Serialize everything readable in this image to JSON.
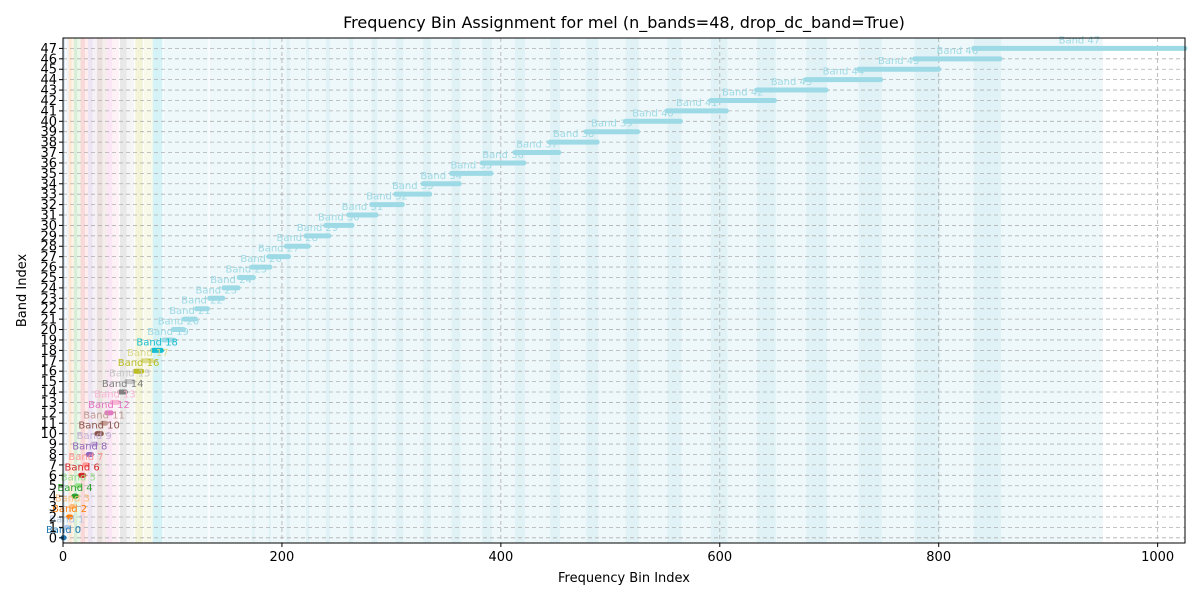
{
  "chart_data": {
    "type": "scatter",
    "title": "Frequency Bin Assignment for mel (n_bands=48, drop_dc_band=True)",
    "xlabel": "Frequency Bin Index",
    "ylabel": "Band Index",
    "xlim": [
      0,
      1025
    ],
    "ylim": [
      -0.5,
      48
    ],
    "xticks": [
      0,
      200,
      400,
      600,
      800,
      1000
    ],
    "yticks": [
      0,
      1,
      2,
      3,
      4,
      5,
      6,
      7,
      8,
      9,
      10,
      11,
      12,
      13,
      14,
      15,
      16,
      17,
      18,
      19,
      20,
      21,
      22,
      23,
      24,
      25,
      26,
      27,
      28,
      29,
      30,
      31,
      32,
      33,
      34,
      35,
      36,
      37,
      38,
      39,
      40,
      41,
      42,
      43,
      44,
      45,
      46,
      47
    ],
    "grid": true,
    "series": [
      {
        "label": "Band 0",
        "bins": [
          0,
          1
        ],
        "color": "#1f77b4"
      },
      {
        "label": "Band 1",
        "bins": [
          3,
          4
        ],
        "color": "#aec7e8"
      },
      {
        "label": "Band 2",
        "bins": [
          5,
          7
        ],
        "color": "#ff7f0e"
      },
      {
        "label": "Band 3",
        "bins": [
          8,
          9
        ],
        "color": "#ffbb78"
      },
      {
        "label": "Band 4",
        "bins": [
          10,
          12
        ],
        "color": "#2ca02c"
      },
      {
        "label": "Band 5",
        "bins": [
          13,
          15
        ],
        "color": "#98df8a"
      },
      {
        "label": "Band 6",
        "bins": [
          16,
          19
        ],
        "color": "#d62728"
      },
      {
        "label": "Band 7",
        "bins": [
          20,
          22
        ],
        "color": "#ff9896"
      },
      {
        "label": "Band 8",
        "bins": [
          23,
          26
        ],
        "color": "#9467bd"
      },
      {
        "label": "Band 9",
        "bins": [
          27,
          30
        ],
        "color": "#c5b0d5"
      },
      {
        "label": "Band 10",
        "bins": [
          31,
          35
        ],
        "color": "#8c564b"
      },
      {
        "label": "Band 11",
        "bins": [
          36,
          39
        ],
        "color": "#c49c94"
      },
      {
        "label": "Band 12",
        "bins": [
          40,
          44
        ],
        "color": "#e377c2"
      },
      {
        "label": "Band 13",
        "bins": [
          45,
          50
        ],
        "color": "#f7b6d2"
      },
      {
        "label": "Band 14",
        "bins": [
          52,
          57
        ],
        "color": "#7f7f7f"
      },
      {
        "label": "Band 15",
        "bins": [
          58,
          64
        ],
        "color": "#c7c7c7"
      },
      {
        "label": "Band 16",
        "bins": [
          66,
          72
        ],
        "color": "#bcbd22"
      },
      {
        "label": "Band 17",
        "bins": [
          74,
          81
        ],
        "color": "#dbdb8d"
      },
      {
        "label": "Band 18",
        "bins": [
          82,
          90
        ],
        "color": "#17becf"
      },
      {
        "label": "Band 19",
        "bins": [
          92,
          100
        ],
        "color": "#9edae5"
      },
      {
        "label": "Band 20",
        "bins": [
          101,
          110
        ],
        "color": "#9edae5"
      },
      {
        "label": "Band 21",
        "bins": [
          111,
          121
        ],
        "color": "#9edae5"
      },
      {
        "label": "Band 22",
        "bins": [
          122,
          132
        ],
        "color": "#9edae5"
      },
      {
        "label": "Band 23",
        "bins": [
          134,
          146
        ],
        "color": "#9edae5"
      },
      {
        "label": "Band 24",
        "bins": [
          147,
          160
        ],
        "color": "#9edae5"
      },
      {
        "label": "Band 25",
        "bins": [
          161,
          174
        ],
        "color": "#9edae5"
      },
      {
        "label": "Band 26",
        "bins": [
          173,
          189
        ],
        "color": "#9edae5"
      },
      {
        "label": "Band 27",
        "bins": [
          188,
          206
        ],
        "color": "#9edae5"
      },
      {
        "label": "Band 28",
        "bins": [
          204,
          224
        ],
        "color": "#9edae5"
      },
      {
        "label": "Band 29",
        "bins": [
          222,
          243
        ],
        "color": "#9edae5"
      },
      {
        "label": "Band 30",
        "bins": [
          240,
          264
        ],
        "color": "#9edae5"
      },
      {
        "label": "Band 31",
        "bins": [
          261,
          286
        ],
        "color": "#9edae5"
      },
      {
        "label": "Band 32",
        "bins": [
          282,
          310
        ],
        "color": "#9edae5"
      },
      {
        "label": "Band 33",
        "bins": [
          304,
          335
        ],
        "color": "#9edae5"
      },
      {
        "label": "Band 34",
        "bins": [
          329,
          362
        ],
        "color": "#9edae5"
      },
      {
        "label": "Band 35",
        "bins": [
          355,
          391
        ],
        "color": "#9edae5"
      },
      {
        "label": "Band 36",
        "bins": [
          383,
          421
        ],
        "color": "#9edae5"
      },
      {
        "label": "Band 37",
        "bins": [
          413,
          453
        ],
        "color": "#9edae5"
      },
      {
        "label": "Band 38",
        "bins": [
          445,
          488
        ],
        "color": "#9edae5"
      },
      {
        "label": "Band 39",
        "bins": [
          478,
          525
        ],
        "color": "#9edae5"
      },
      {
        "label": "Band 40",
        "bins": [
          514,
          564
        ],
        "color": "#9edae5"
      },
      {
        "label": "Band 41",
        "bins": [
          552,
          606
        ],
        "color": "#9edae5"
      },
      {
        "label": "Band 42",
        "bins": [
          592,
          650
        ],
        "color": "#9edae5"
      },
      {
        "label": "Band 43",
        "bins": [
          634,
          697
        ],
        "color": "#9edae5"
      },
      {
        "label": "Band 44",
        "bins": [
          679,
          747
        ],
        "color": "#9edae5"
      },
      {
        "label": "Band 45",
        "bins": [
          727,
          800
        ],
        "color": "#9edae5"
      },
      {
        "label": "Band 46",
        "bins": [
          778,
          856
        ],
        "color": "#9edae5"
      },
      {
        "label": "Band 47",
        "bins": [
          832,
          1025
        ],
        "color": "#9edae5"
      }
    ]
  }
}
